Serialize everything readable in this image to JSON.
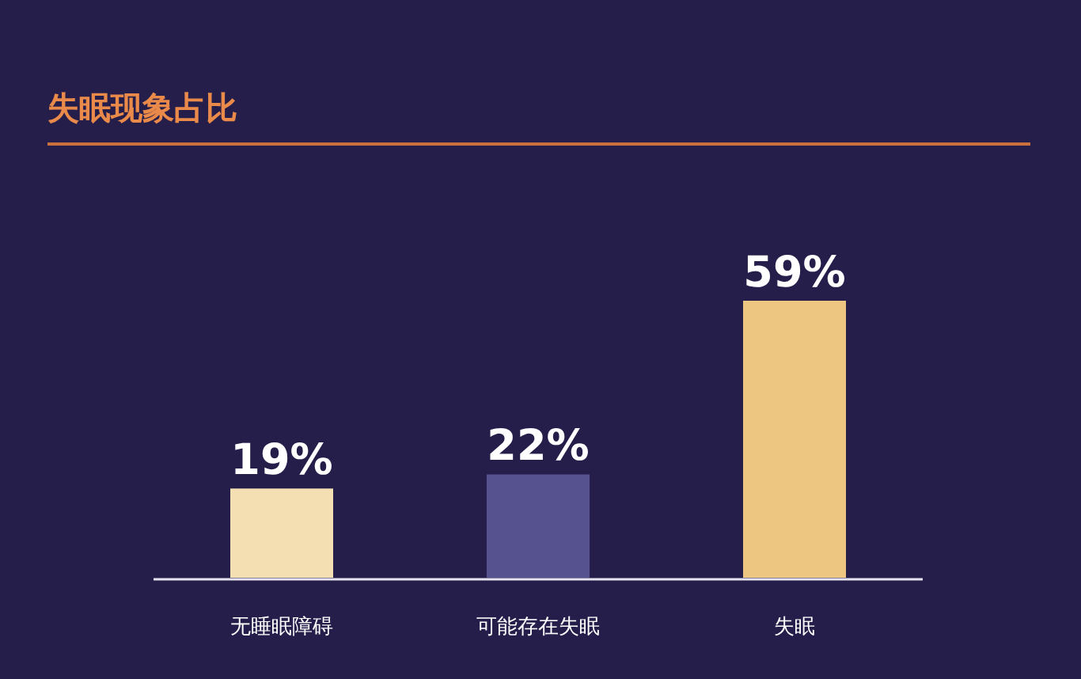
{
  "chart_data": {
    "type": "bar",
    "title": "失眠现象占比",
    "categories": [
      "无睡眠障碍",
      "可能存在失眠",
      "失眠"
    ],
    "values": [
      19,
      22,
      59
    ],
    "value_labels": [
      "19%",
      "22%",
      "59%"
    ],
    "colors": [
      "#f4dfb2",
      "#55528f",
      "#edc681"
    ]
  }
}
